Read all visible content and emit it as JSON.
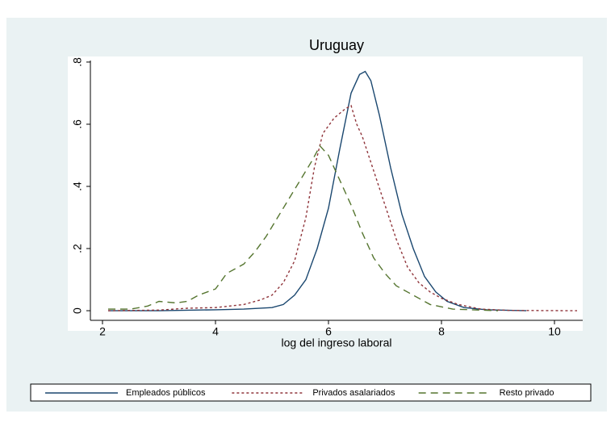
{
  "chart_data": {
    "type": "line",
    "title": "Uruguay",
    "xlabel": "log del ingreso laboral",
    "xlim": [
      1.786,
      10.5
    ],
    "xticks": [
      2,
      4,
      6,
      8,
      10
    ],
    "ylim": [
      -0.031,
      0.805
    ],
    "yticks": [
      0,
      {
        "value": 0.2,
        "label": ".2"
      },
      {
        "value": 0.4,
        "label": ".4"
      },
      {
        "value": 0.6,
        "label": ".6"
      },
      {
        "value": 0.8,
        "label": ".8"
      }
    ],
    "legend": "bottom",
    "series": [
      {
        "name": "Empleados públicos",
        "color": "#1a476f",
        "dash": "solid",
        "x": [
          2.1,
          3,
          4,
          4.5,
          5,
          5.2,
          5.4,
          5.6,
          5.8,
          6.0,
          6.2,
          6.4,
          6.55,
          6.65,
          6.75,
          6.9,
          7.1,
          7.3,
          7.5,
          7.7,
          7.9,
          8.1,
          8.4,
          8.8,
          9.5
        ],
        "values": [
          0,
          0,
          0.003,
          0.005,
          0.01,
          0.02,
          0.05,
          0.1,
          0.2,
          0.33,
          0.52,
          0.7,
          0.76,
          0.77,
          0.74,
          0.63,
          0.46,
          0.31,
          0.2,
          0.11,
          0.06,
          0.03,
          0.01,
          0.003,
          0
        ]
      },
      {
        "name": "Privados asalariados",
        "color": "#90353b",
        "dash": "dotted",
        "x": [
          2.1,
          3,
          3.5,
          4,
          4.5,
          4.8,
          5.0,
          5.2,
          5.4,
          5.6,
          5.75,
          5.9,
          6.1,
          6.3,
          6.4,
          6.5,
          6.6,
          6.8,
          7.0,
          7.2,
          7.4,
          7.6,
          7.8,
          8.0,
          8.3,
          8.7,
          9.2,
          10.4
        ],
        "values": [
          0,
          0.002,
          0.008,
          0.01,
          0.02,
          0.035,
          0.05,
          0.09,
          0.16,
          0.3,
          0.46,
          0.57,
          0.62,
          0.65,
          0.66,
          0.6,
          0.56,
          0.45,
          0.34,
          0.23,
          0.14,
          0.09,
          0.06,
          0.04,
          0.02,
          0.005,
          0.001,
          0
        ]
      },
      {
        "name": "Resto privado",
        "color": "#55752f",
        "dash": "dashed",
        "x": [
          2.1,
          2.5,
          2.8,
          3.0,
          3.3,
          3.5,
          3.7,
          4.0,
          4.2,
          4.5,
          4.7,
          4.9,
          5.1,
          5.3,
          5.5,
          5.7,
          5.85,
          6.0,
          6.2,
          6.4,
          6.6,
          6.8,
          7.0,
          7.2,
          7.5,
          7.8,
          8.2,
          9
        ],
        "values": [
          0.005,
          0.005,
          0.015,
          0.03,
          0.025,
          0.03,
          0.05,
          0.07,
          0.12,
          0.15,
          0.19,
          0.24,
          0.3,
          0.36,
          0.42,
          0.48,
          0.53,
          0.5,
          0.42,
          0.34,
          0.25,
          0.17,
          0.12,
          0.08,
          0.05,
          0.02,
          0.005,
          0
        ]
      }
    ]
  }
}
